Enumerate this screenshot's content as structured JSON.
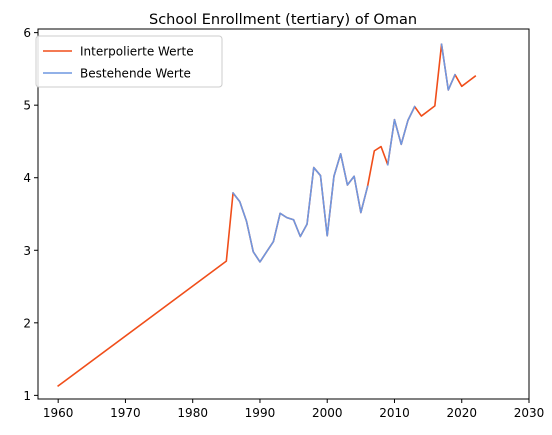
{
  "chart_data": {
    "type": "line",
    "title": "School Enrollment (tertiary) of Oman",
    "xlabel": "",
    "ylabel": "",
    "xlim": [
      1957,
      2030
    ],
    "ylim": [
      0.95,
      6.05
    ],
    "x_ticks": [
      1960,
      1970,
      1980,
      1990,
      2000,
      2010,
      2020,
      2030
    ],
    "y_ticks": [
      1,
      2,
      3,
      4,
      5,
      6
    ],
    "grid": false,
    "legend_position": "top-left",
    "series": [
      {
        "name": "Interpolierte Werte",
        "color": "#f04e1a",
        "x": [
          1960,
          1985,
          1986,
          1987,
          1988,
          1989,
          1990,
          1991,
          1992,
          1993,
          1994,
          1995,
          1996,
          1997,
          1998,
          1999,
          2000,
          2001,
          2002,
          2003,
          2004,
          2005,
          2006,
          2007,
          2008,
          2009,
          2010,
          2011,
          2012,
          2013,
          2014,
          2015,
          2016,
          2017,
          2018,
          2019,
          2020,
          2021,
          2022
        ],
        "y": [
          1.13,
          2.85,
          3.79,
          3.67,
          3.4,
          2.98,
          2.84,
          2.98,
          3.12,
          3.51,
          3.45,
          3.42,
          3.19,
          3.36,
          4.14,
          4.03,
          3.2,
          4.02,
          4.33,
          3.9,
          4.02,
          3.52,
          3.88,
          4.37,
          4.43,
          4.18,
          4.8,
          4.46,
          4.79,
          4.98,
          4.85,
          4.92,
          4.99,
          5.84,
          5.21,
          5.42,
          5.26,
          5.33,
          5.4
        ]
      },
      {
        "name": "Bestehende Werte",
        "color": "#6f97e0",
        "x": [
          1986,
          1987,
          1988,
          1989,
          1990,
          1991,
          1992,
          1993,
          1994,
          1995,
          1996,
          1997,
          1998,
          1999,
          2000,
          2001,
          2002,
          2003,
          2004,
          2005,
          2006,
          null,
          2009,
          2010,
          2011,
          2012,
          2013,
          null,
          2017,
          2018,
          2019
        ],
        "y": [
          3.79,
          3.67,
          3.4,
          2.98,
          2.84,
          2.98,
          3.12,
          3.51,
          3.45,
          3.42,
          3.19,
          3.36,
          4.14,
          4.03,
          3.2,
          4.02,
          4.33,
          3.9,
          4.02,
          3.52,
          3.88,
          null,
          4.18,
          4.8,
          4.46,
          4.79,
          4.98,
          null,
          5.84,
          5.21,
          5.42
        ]
      }
    ]
  }
}
